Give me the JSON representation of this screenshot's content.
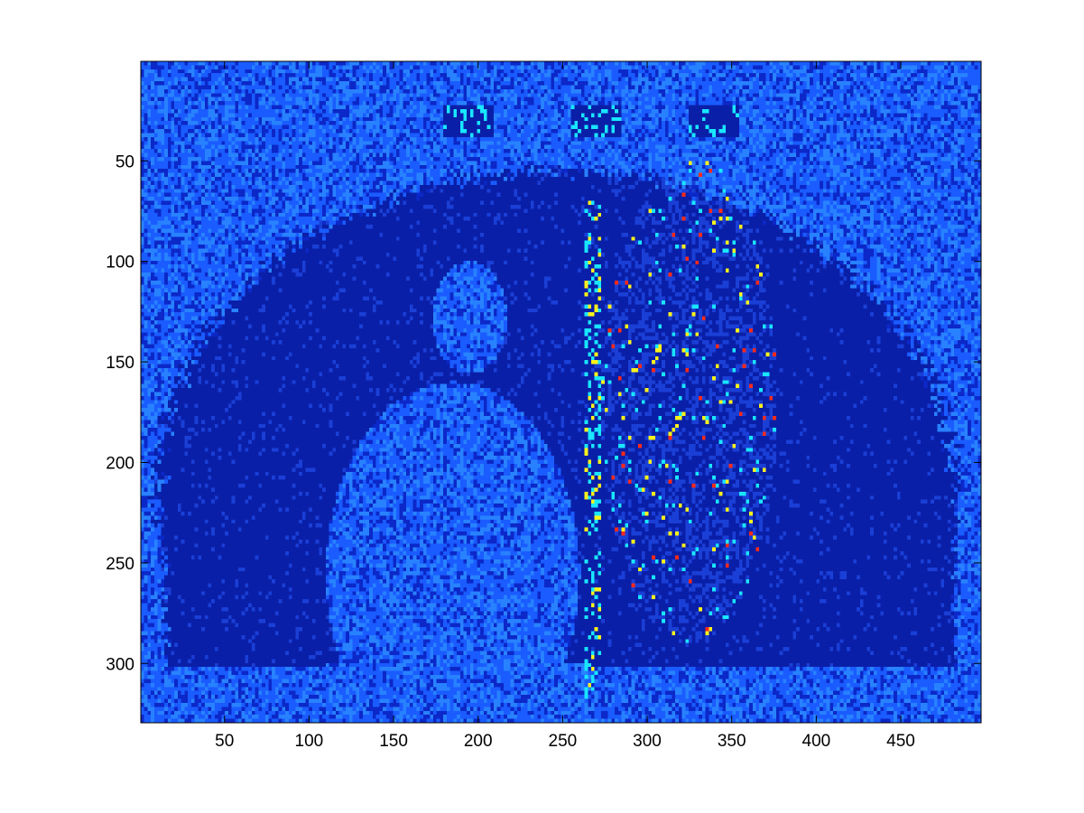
{
  "chart_data": {
    "type": "heatmap",
    "title": "",
    "xlabel": "",
    "ylabel": "",
    "colormap": "jet",
    "y_reversed": true,
    "xlim": [
      0.5,
      497.5
    ],
    "ylim": [
      0.5,
      329.5
    ],
    "x_ticks": [
      50,
      100,
      150,
      200,
      250,
      300,
      350,
      400,
      450
    ],
    "y_ticks": [
      50,
      100,
      150,
      200,
      250,
      300
    ],
    "x_tick_labels": [
      "50",
      "100",
      "150",
      "200",
      "250",
      "300",
      "350",
      "400",
      "450"
    ],
    "y_tick_labels": [
      "50",
      "100",
      "150",
      "200",
      "250",
      "300"
    ],
    "colors": {
      "background_noise": "#1a5cff",
      "dark_region": "#0a1fa8",
      "mid_region": "#1a3fd6",
      "edge_cyan": "#19e6ff",
      "edge_yellow": "#fff21a",
      "edge_red": "#ff2a1a"
    },
    "regions": [
      {
        "name": "dark stage arch",
        "x_range": [
          5,
          487
        ],
        "y_range": [
          45,
          302
        ]
      },
      {
        "name": "seated figure silhouette",
        "x_range": [
          88,
          305
        ],
        "y_range": [
          100,
          325
        ]
      },
      {
        "name": "standing guitarist",
        "x_range": [
          270,
          410
        ],
        "y_range": [
          48,
          325
        ]
      },
      {
        "name": "microphone stand",
        "x_range": [
          263,
          272
        ],
        "y_range": [
          70,
          325
        ]
      },
      {
        "name": "ceiling lights",
        "x_range": [
          175,
          355
        ],
        "y_range": [
          22,
          38
        ]
      }
    ]
  }
}
